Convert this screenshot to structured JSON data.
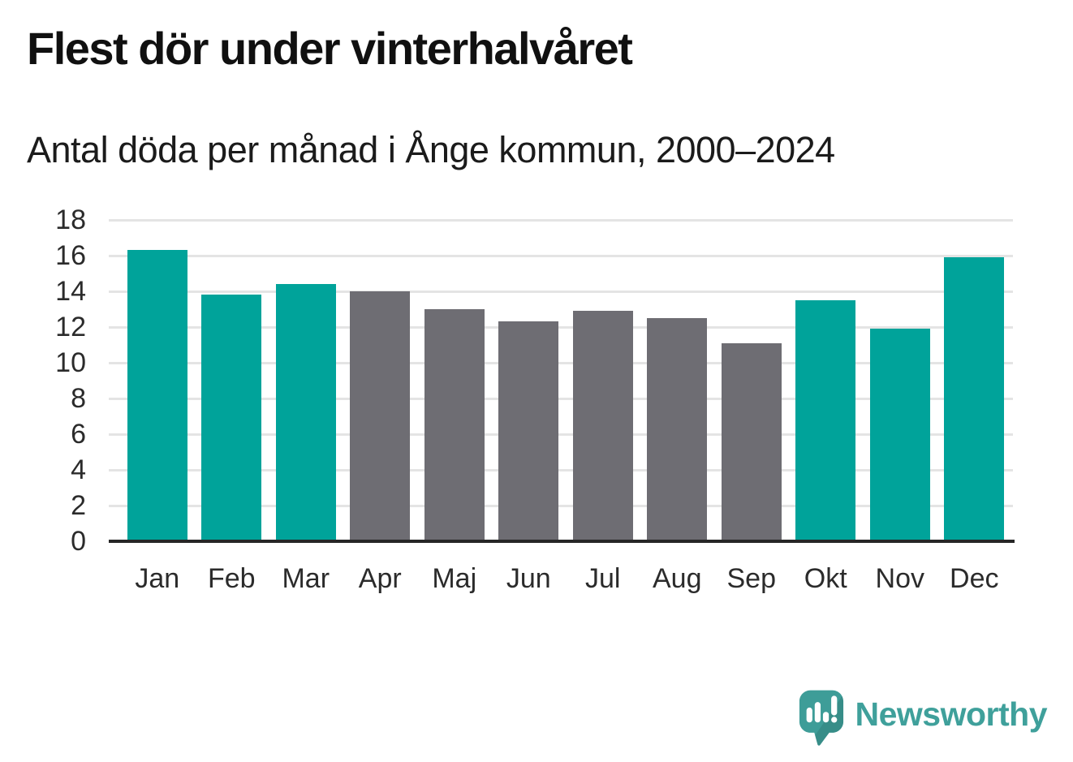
{
  "title": "Flest dör under vinterhalvåret",
  "subtitle": "Antal döda per månad i Ånge kommun, 2000–2024",
  "chart_data": {
    "type": "bar",
    "title": "Flest dör under vinterhalvåret",
    "subtitle": "Antal döda per månad i Ånge kommun, 2000–2024",
    "categories": [
      "Jan",
      "Feb",
      "Mar",
      "Apr",
      "Maj",
      "Jun",
      "Jul",
      "Aug",
      "Sep",
      "Okt",
      "Nov",
      "Dec"
    ],
    "values": [
      16.3,
      13.8,
      14.4,
      14.0,
      13.0,
      12.3,
      12.9,
      12.5,
      11.1,
      13.5,
      11.9,
      15.9
    ],
    "bar_colors": [
      "teal",
      "teal",
      "teal",
      "gray",
      "gray",
      "gray",
      "gray",
      "gray",
      "gray",
      "teal",
      "teal",
      "teal"
    ],
    "colors": {
      "teal": "#00a39a",
      "gray": "#6e6d73"
    },
    "xlabel": "",
    "ylabel": "",
    "ylim": [
      0,
      18
    ],
    "yticks": [
      0,
      2,
      4,
      6,
      8,
      10,
      12,
      14,
      16,
      18
    ],
    "grid": "horizontal",
    "legend": "none"
  },
  "branding": {
    "logo_text": "Newsworthy",
    "logo_color": "#3fa09b",
    "logo_icon": "speech-bubble-bar-chart-icon"
  }
}
